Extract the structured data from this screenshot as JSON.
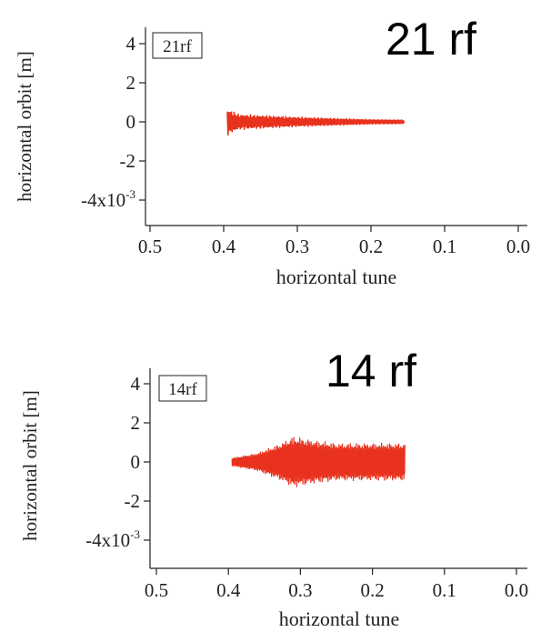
{
  "chart_data": [
    {
      "type": "line",
      "title": "21 rf",
      "box_label": "21rf",
      "xlabel": "horizontal tune",
      "ylabel": "horizontal orbit [m]",
      "xlim": [
        0.5,
        0.0
      ],
      "x_reversed": true,
      "ylim": [
        -5,
        5
      ],
      "y_scale_label": "x10",
      "y_scale_exponent": "-3",
      "x_ticks": [
        "0.5",
        "0.4",
        "0.3",
        "0.2",
        "0.1",
        "0.0"
      ],
      "x_tick_values": [
        0.5,
        0.4,
        0.3,
        0.2,
        0.1,
        0.0
      ],
      "y_ticks": [
        "4",
        "2",
        "0",
        "-2",
        "-4"
      ],
      "y_tick_values": [
        4,
        2,
        0,
        -2,
        -4
      ],
      "series": [
        {
          "x_range": [
            0.395,
            0.155
          ],
          "envelope": [
            [
              0.395,
              0.7
            ],
            [
              0.38,
              0.4
            ],
            [
              0.3,
              0.25
            ],
            [
              0.2,
              0.12
            ],
            [
              0.155,
              0.1
            ]
          ],
          "color": "#e8321e"
        }
      ]
    },
    {
      "type": "line",
      "title": "14 rf",
      "box_label": "14rf",
      "xlabel": "horizontal tune",
      "ylabel": "horizontal orbit [m]",
      "xlim": [
        0.5,
        0.0
      ],
      "x_reversed": true,
      "ylim": [
        -5,
        5
      ],
      "y_scale_label": "x10",
      "y_scale_exponent": "-3",
      "x_ticks": [
        "0.5",
        "0.4",
        "0.3",
        "0.2",
        "0.1",
        "0.0"
      ],
      "x_tick_values": [
        0.5,
        0.4,
        0.3,
        0.2,
        0.1,
        0.0
      ],
      "y_ticks": [
        "4",
        "2",
        "0",
        "-2",
        "-4"
      ],
      "y_tick_values": [
        4,
        2,
        0,
        -2,
        -4
      ],
      "series": [
        {
          "x_range": [
            0.395,
            0.155
          ],
          "envelope": [
            [
              0.395,
              0.2
            ],
            [
              0.36,
              0.45
            ],
            [
              0.33,
              0.9
            ],
            [
              0.31,
              1.3
            ],
            [
              0.28,
              1.1
            ],
            [
              0.25,
              0.95
            ],
            [
              0.2,
              0.95
            ],
            [
              0.155,
              0.95
            ]
          ],
          "color": "#e8321e"
        }
      ]
    }
  ]
}
